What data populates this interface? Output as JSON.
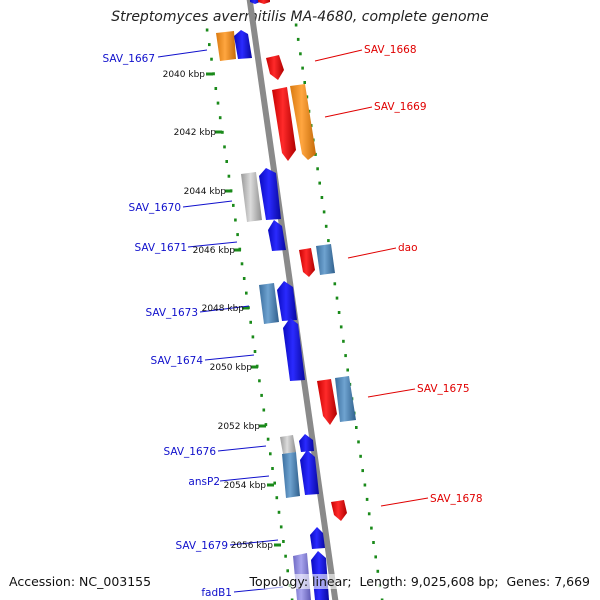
{
  "title": "Streptomyces avermitilis MA-4680, complete genome",
  "footer": {
    "accession_label": "Accession:",
    "accession": "NC_003155",
    "topology_label": "Topology:",
    "topology": "linear",
    "length_label": "Length:",
    "length": "9,025,608 bp",
    "genes_label": "Genes:",
    "genes": "7,669"
  },
  "colors": {
    "backbone": "#8a8a8a",
    "tick_dots": "#1a8a1a",
    "left_label": "#1010cc",
    "right_label": "#e00000",
    "blue": "#1010e8",
    "red": "#f01010",
    "orange": "#f7931e",
    "steel": "#4f86b8",
    "gray": "#b8b8b8",
    "lavender": "#8a86d8"
  },
  "scale_labels": [
    "2040 kbp",
    "2042 kbp",
    "2044 kbp",
    "2046 kbp",
    "2048 kbp",
    "2050 kbp",
    "2052 kbp",
    "2054 kbp",
    "2056 kbp"
  ],
  "left_genes": [
    "SAV_1667",
    "SAV_1670",
    "SAV_1671",
    "SAV_1673",
    "SAV_1674",
    "SAV_1676",
    "ansP2",
    "SAV_1679",
    "fadB1"
  ],
  "right_genes": [
    "SAV_1668",
    "SAV_1669",
    "dao",
    "SAV_1675",
    "SAV_1678"
  ]
}
